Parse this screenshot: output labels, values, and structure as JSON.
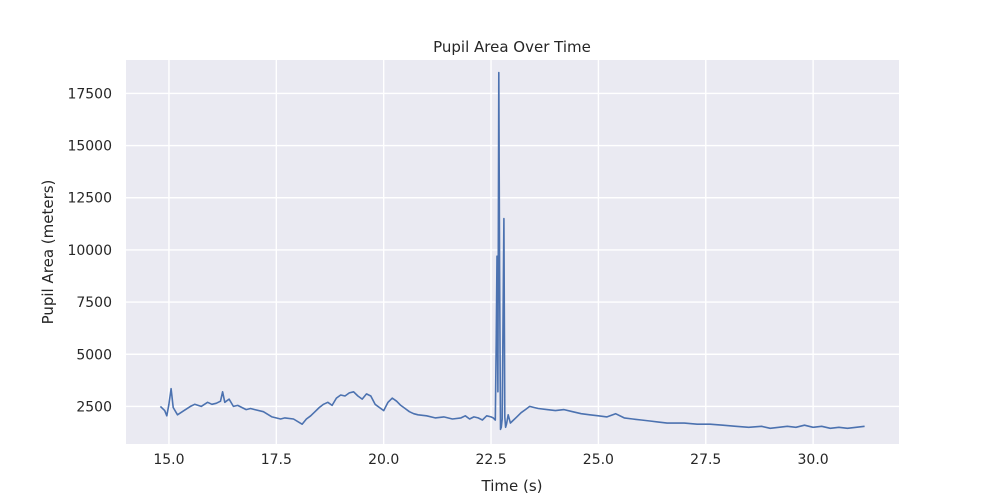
{
  "chart_data": {
    "type": "line",
    "title": "Pupil Area Over Time",
    "xlabel": "Time (s)",
    "ylabel": "Pupil Area (meters)",
    "xlim": [
      14.0,
      32.0
    ],
    "ylim": [
      700,
      19100
    ],
    "xticks": [
      15.0,
      17.5,
      20.0,
      22.5,
      25.0,
      27.5,
      30.0
    ],
    "xtick_labels": [
      "15.0",
      "17.5",
      "20.0",
      "22.5",
      "25.0",
      "27.5",
      "30.0"
    ],
    "yticks": [
      2500,
      5000,
      7500,
      10000,
      12500,
      15000,
      17500
    ],
    "ytick_labels": [
      "2500",
      "5000",
      "7500",
      "10000",
      "12500",
      "15000",
      "17500"
    ],
    "grid": true,
    "colors": {
      "background": "#eaeaf2",
      "grid": "#ffffff",
      "series": "#4c72b0"
    },
    "series": [
      {
        "x": [
          14.8,
          14.9,
          14.95,
          15.0,
          15.05,
          15.1,
          15.2,
          15.35,
          15.5,
          15.6,
          15.75,
          15.9,
          16.0,
          16.1,
          16.2,
          16.25,
          16.3,
          16.4,
          16.5,
          16.6,
          16.7,
          16.8,
          16.9,
          17.0,
          17.2,
          17.4,
          17.6,
          17.7,
          17.9,
          18.1,
          18.2,
          18.3,
          18.4,
          18.5,
          18.6,
          18.7,
          18.8,
          18.9,
          19.0,
          19.1,
          19.2,
          19.3,
          19.4,
          19.5,
          19.6,
          19.7,
          19.8,
          19.9,
          20.0,
          20.1,
          20.2,
          20.3,
          20.4,
          20.5,
          20.6,
          20.7,
          20.8,
          21.0,
          21.2,
          21.4,
          21.6,
          21.8,
          21.9,
          22.0,
          22.1,
          22.2,
          22.3,
          22.4,
          22.5,
          22.55,
          22.6,
          22.62,
          22.64,
          22.66,
          22.68,
          22.7,
          22.72,
          22.74,
          22.76,
          22.8,
          22.82,
          22.84,
          22.86,
          22.9,
          22.95,
          23.0,
          23.1,
          23.2,
          23.3,
          23.4,
          23.5,
          23.6,
          23.8,
          24.0,
          24.2,
          24.4,
          24.6,
          24.8,
          25.0,
          25.2,
          25.4,
          25.6,
          25.8,
          26.0,
          26.2,
          26.4,
          26.6,
          26.8,
          27.0,
          27.3,
          27.6,
          27.9,
          28.2,
          28.5,
          28.8,
          29.0,
          29.2,
          29.4,
          29.6,
          29.8,
          30.0,
          30.2,
          30.4,
          30.6,
          30.8,
          31.0,
          31.2
        ],
        "y": [
          2500,
          2300,
          2050,
          2600,
          3350,
          2450,
          2100,
          2300,
          2500,
          2600,
          2500,
          2700,
          2600,
          2650,
          2750,
          3200,
          2700,
          2850,
          2500,
          2550,
          2450,
          2350,
          2400,
          2350,
          2250,
          2000,
          1900,
          1950,
          1900,
          1650,
          1900,
          2050,
          2250,
          2450,
          2600,
          2700,
          2550,
          2900,
          3050,
          3000,
          3150,
          3200,
          3000,
          2850,
          3100,
          3000,
          2600,
          2450,
          2300,
          2700,
          2900,
          2750,
          2550,
          2400,
          2250,
          2150,
          2100,
          2050,
          1950,
          2000,
          1900,
          1950,
          2050,
          1900,
          2000,
          1950,
          1850,
          2050,
          2000,
          1950,
          1850,
          5500,
          9700,
          3200,
          18500,
          9000,
          1400,
          1500,
          1900,
          11500,
          2000,
          1500,
          1650,
          2100,
          1700,
          1800,
          2000,
          2200,
          2350,
          2500,
          2450,
          2400,
          2350,
          2300,
          2350,
          2250,
          2150,
          2100,
          2050,
          2000,
          2150,
          1950,
          1900,
          1850,
          1800,
          1750,
          1700,
          1700,
          1700,
          1650,
          1650,
          1600,
          1550,
          1500,
          1550,
          1450,
          1500,
          1550,
          1500,
          1600,
          1500,
          1550,
          1450,
          1500,
          1450,
          1500,
          1550
        ]
      }
    ]
  }
}
